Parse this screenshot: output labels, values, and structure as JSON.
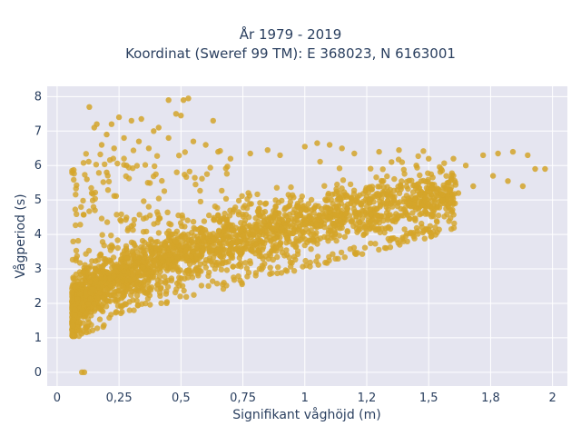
{
  "chart_data": {
    "type": "scatter",
    "title": "År 1979 - 2019",
    "subtitle": "Koordinat (Sweref 99 TM): E 368023, N 6163001",
    "xlabel": "Signifikant våghöjd (m)",
    "ylabel": "Vågperiod (s)",
    "xlim": [
      -0.04,
      2.06
    ],
    "ylim": [
      -0.4,
      8.3
    ],
    "x_ticks": [
      0,
      0.25,
      0.5,
      0.75,
      1,
      1.25,
      1.5,
      1.75,
      2
    ],
    "x_tick_labels": [
      "0",
      "0,25",
      "0,5",
      "0,75",
      "1",
      "1,2",
      "1,5",
      "1,8",
      "2"
    ],
    "y_ticks": [
      0,
      1,
      2,
      3,
      4,
      5,
      6,
      7,
      8
    ],
    "y_tick_labels": [
      "0",
      "1",
      "2",
      "3",
      "4",
      "5",
      "6",
      "7",
      "8"
    ],
    "grid": true,
    "marker_color": "#d4a52a",
    "background_color": "#e5e5f0",
    "series": [
      {
        "points": [
          [
            0.1,
            0.0
          ],
          [
            0.11,
            0.0
          ],
          [
            0.13,
            7.7
          ],
          [
            0.45,
            7.9
          ],
          [
            0.51,
            7.9
          ],
          [
            0.53,
            7.95
          ],
          [
            0.48,
            7.5
          ],
          [
            0.5,
            7.45
          ],
          [
            0.34,
            7.35
          ],
          [
            0.25,
            7.4
          ],
          [
            0.3,
            7.3
          ],
          [
            0.22,
            7.2
          ],
          [
            0.16,
            7.2
          ],
          [
            0.15,
            7.1
          ],
          [
            0.63,
            7.3
          ],
          [
            0.41,
            7.1
          ],
          [
            0.39,
            7.0
          ],
          [
            0.2,
            6.9
          ],
          [
            0.27,
            6.8
          ],
          [
            0.33,
            6.7
          ],
          [
            0.45,
            6.8
          ],
          [
            0.55,
            6.7
          ],
          [
            0.37,
            6.5
          ],
          [
            0.18,
            6.6
          ],
          [
            0.23,
            6.5
          ],
          [
            0.6,
            6.6
          ],
          [
            0.65,
            6.4
          ],
          [
            0.7,
            6.2
          ],
          [
            0.78,
            6.35
          ],
          [
            0.85,
            6.45
          ],
          [
            0.9,
            6.3
          ],
          [
            1.05,
            6.65
          ],
          [
            1.0,
            6.55
          ],
          [
            1.15,
            6.5
          ],
          [
            1.1,
            6.6
          ],
          [
            1.2,
            6.35
          ],
          [
            1.3,
            6.4
          ],
          [
            1.38,
            6.45
          ],
          [
            1.35,
            6.1
          ],
          [
            1.45,
            6.0
          ],
          [
            1.5,
            6.2
          ],
          [
            1.55,
            5.9
          ],
          [
            1.6,
            6.2
          ],
          [
            1.65,
            6.0
          ],
          [
            1.72,
            6.3
          ],
          [
            1.78,
            6.35
          ],
          [
            1.84,
            6.4
          ],
          [
            1.9,
            6.3
          ],
          [
            1.97,
            5.9
          ],
          [
            1.93,
            5.9
          ],
          [
            1.88,
            5.4
          ],
          [
            1.82,
            5.55
          ],
          [
            1.76,
            5.7
          ],
          [
            1.68,
            5.4
          ],
          [
            1.62,
            5.2
          ],
          [
            1.58,
            5.5
          ],
          [
            0.12,
            5.6
          ],
          [
            0.14,
            5.2
          ],
          [
            0.2,
            5.8
          ],
          [
            0.28,
            6.0
          ]
        ]
      }
    ]
  }
}
